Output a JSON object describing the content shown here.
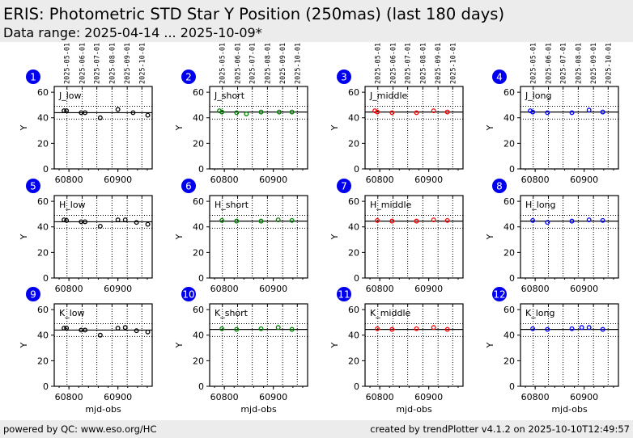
{
  "header": {
    "title": "ERIS: Photometric STD Star Y Position (250mas) (last 180 days)",
    "subtitle": "Data range: 2025-04-14 ... 2025-10-09*"
  },
  "footer": {
    "left": "powered by QC: www.eso.org/HC",
    "right": "created by trendPlotter v4.1.2 on 2025-10-10T12:49:57"
  },
  "colors": {
    "low": "#000000",
    "short": "#008000",
    "middle": "#ff0000",
    "long": "#0000ff",
    "badge": "#0000ee",
    "header_bg": "#ececec"
  },
  "chart_data": {
    "type": "scatter",
    "xlabel": "mjd-obs",
    "ylabel": "Y",
    "xlim": [
      60770,
      60970
    ],
    "ylim": [
      0,
      64.5
    ],
    "xticks": [
      60800,
      60900
    ],
    "xtick_labels": [
      "60800",
      "60900"
    ],
    "yticks": [
      0,
      20,
      40,
      60
    ],
    "ytick_labels": [
      "0",
      "20",
      "40",
      "60"
    ],
    "date_ticks": [
      {
        "label": "2025-05-01",
        "mjd": 60796
      },
      {
        "label": "2025-06-01",
        "mjd": 60827
      },
      {
        "label": "2025-07-01",
        "mjd": 60857
      },
      {
        "label": "2025-08-01",
        "mjd": 60888
      },
      {
        "label": "2025-09-01",
        "mjd": 60919
      },
      {
        "label": "2025-10-01",
        "mjd": 60949
      }
    ],
    "panels": [
      {
        "number": "1",
        "label": "J_low",
        "color_key": "low",
        "median": 44,
        "upper": 49,
        "lower": 39,
        "x": [
          60790,
          60795,
          60825,
          60833,
          60864,
          60900,
          60931,
          60961
        ],
        "y": [
          45.5,
          45.5,
          44,
          44,
          40,
          46.5,
          44,
          42
        ]
      },
      {
        "number": "2",
        "label": "J_short",
        "color_key": "short",
        "median": 44.5,
        "upper": 49,
        "lower": 39,
        "x": [
          60790,
          60795,
          60825,
          60845,
          60875,
          60912,
          60938
        ],
        "y": [
          45.5,
          44.5,
          44,
          43,
          44.5,
          44.5,
          44.5
        ]
      },
      {
        "number": "3",
        "label": "J_middle",
        "color_key": "middle",
        "median": 44.5,
        "upper": 49,
        "lower": 39,
        "x": [
          60790,
          60795,
          60825,
          60875,
          60910,
          60938
        ],
        "y": [
          45.5,
          44.5,
          44,
          44,
          45.5,
          44.5
        ]
      },
      {
        "number": "4",
        "label": "J_long",
        "color_key": "long",
        "median": 44.5,
        "upper": 49,
        "lower": 39,
        "x": [
          60790,
          60795,
          60825,
          60875,
          60910,
          60938
        ],
        "y": [
          45.5,
          44.5,
          44,
          44,
          46,
          44.5
        ]
      },
      {
        "number": "5",
        "label": "H_low",
        "color_key": "low",
        "median": 44,
        "upper": 49,
        "lower": 39,
        "x": [
          60790,
          60795,
          60825,
          60833,
          60864,
          60900,
          60915,
          60938,
          60961
        ],
        "y": [
          45.5,
          45,
          44,
          44,
          40.5,
          45.5,
          45.5,
          43.5,
          42
        ]
      },
      {
        "number": "6",
        "label": "H_short",
        "color_key": "short",
        "median": 44.5,
        "upper": 49,
        "lower": 39,
        "x": [
          60795,
          60825,
          60875,
          60910,
          60938
        ],
        "y": [
          45,
          44.5,
          44.5,
          45.5,
          45
        ]
      },
      {
        "number": "7",
        "label": "H_middle",
        "color_key": "middle",
        "median": 44.5,
        "upper": 49,
        "lower": 39,
        "x": [
          60795,
          60825,
          60875,
          60910,
          60938
        ],
        "y": [
          45,
          44.5,
          44.5,
          45.5,
          45
        ]
      },
      {
        "number": "8",
        "label": "H_long",
        "color_key": "long",
        "median": 44.5,
        "upper": 49,
        "lower": 39,
        "x": [
          60795,
          60825,
          60875,
          60910,
          60938
        ],
        "y": [
          45,
          43.5,
          44.5,
          45.5,
          45
        ]
      },
      {
        "number": "9",
        "label": "K_low",
        "color_key": "low",
        "median": 44,
        "upper": 49,
        "lower": 39,
        "x": [
          60790,
          60795,
          60825,
          60833,
          60864,
          60900,
          60915,
          60938,
          60961
        ],
        "y": [
          45.5,
          45.5,
          44,
          44,
          40,
          45.5,
          46,
          43.5,
          42.5
        ]
      },
      {
        "number": "10",
        "label": "K_short",
        "color_key": "short",
        "median": 44.5,
        "upper": 49,
        "lower": 39,
        "x": [
          60795,
          60825,
          60875,
          60910,
          60938
        ],
        "y": [
          45,
          44.5,
          45,
          46,
          44.5
        ]
      },
      {
        "number": "11",
        "label": "K_middle",
        "color_key": "middle",
        "median": 44.5,
        "upper": 49,
        "lower": 39,
        "x": [
          60795,
          60825,
          60875,
          60910,
          60938
        ],
        "y": [
          45,
          44.5,
          45,
          46,
          44.5
        ]
      },
      {
        "number": "12",
        "label": "K_long",
        "color_key": "long",
        "median": 44.5,
        "upper": 49,
        "lower": 39,
        "x": [
          60795,
          60825,
          60875,
          60895,
          60910,
          60938
        ],
        "y": [
          45,
          44.5,
          45,
          46,
          46,
          44.5
        ]
      }
    ]
  }
}
